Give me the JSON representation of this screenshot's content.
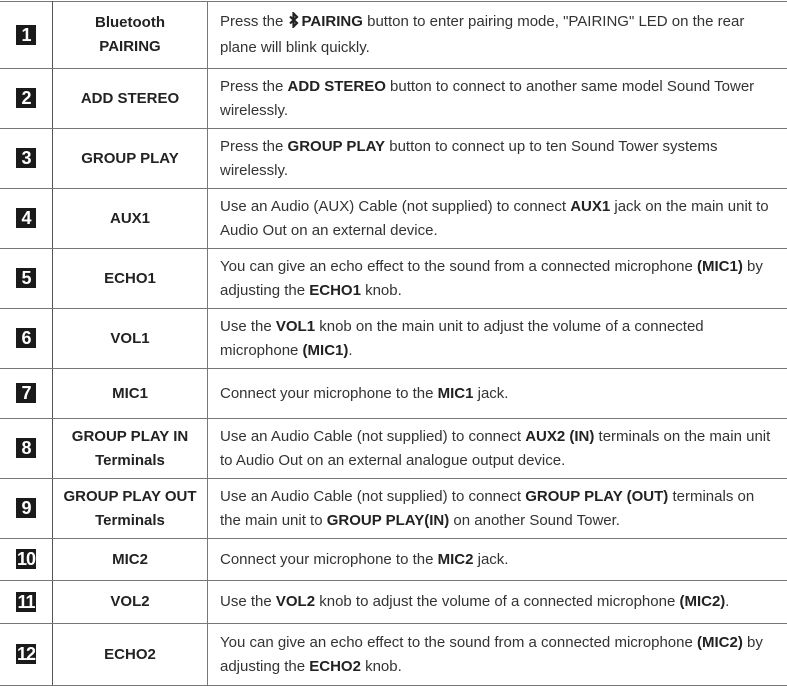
{
  "rows": [
    {
      "num": "1",
      "name": [
        "Bluetooth",
        "PAIRING"
      ],
      "desc": [
        {
          "t": "Press the "
        },
        {
          "icon": "bluetooth-icon",
          "g": "ᛒ"
        },
        {
          "t": "PAIRING",
          "b": true
        },
        {
          "t": " button to enter pairing mode, \"PAIRING\" LED on the rear plane will blink quickly."
        }
      ]
    },
    {
      "num": "2",
      "name": [
        "ADD STEREO"
      ],
      "desc": [
        {
          "t": "Press the "
        },
        {
          "t": "ADD STEREO",
          "b": true
        },
        {
          "t": " button to connect to another same model Sound Tower wirelessly."
        }
      ]
    },
    {
      "num": "3",
      "name": [
        "GROUP PLAY"
      ],
      "desc": [
        {
          "t": "Press the "
        },
        {
          "t": "GROUP PLAY",
          "b": true
        },
        {
          "t": " button to connect up to ten Sound Tower systems wirelessly."
        }
      ]
    },
    {
      "num": "4",
      "name": [
        "AUX1"
      ],
      "desc": [
        {
          "t": "Use an Audio (AUX) Cable (not supplied) to connect "
        },
        {
          "t": "AUX1",
          "b": true
        },
        {
          "t": " jack on the main unit to Audio Out on an external device."
        }
      ]
    },
    {
      "num": "5",
      "name": [
        "ECHO1"
      ],
      "desc": [
        {
          "t": "You can give an echo effect to the sound from a connected microphone "
        },
        {
          "t": "(MIC1)",
          "b": true
        },
        {
          "t": " by adjusting the "
        },
        {
          "t": "ECHO1",
          "b": true
        },
        {
          "t": " knob."
        }
      ]
    },
    {
      "num": "6",
      "name": [
        "VOL1"
      ],
      "desc": [
        {
          "t": "Use the "
        },
        {
          "t": "VOL1",
          "b": true
        },
        {
          "t": " knob on the main unit to adjust the volume of a connected microphone "
        },
        {
          "t": "(MIC1)",
          "b": true
        },
        {
          "t": "."
        }
      ]
    },
    {
      "num": "7",
      "name": [
        "MIC1"
      ],
      "desc": [
        {
          "t": "Connect your microphone to the "
        },
        {
          "t": "MIC1",
          "b": true
        },
        {
          "t": " jack."
        }
      ]
    },
    {
      "num": "8",
      "name": [
        "GROUP PLAY IN",
        "Terminals"
      ],
      "desc": [
        {
          "t": "Use an Audio Cable (not supplied) to connect "
        },
        {
          "t": "AUX2 (IN)",
          "b": true
        },
        {
          "t": " terminals on the main unit to Audio Out on an external analogue output device."
        }
      ]
    },
    {
      "num": "9",
      "name": [
        "GROUP PLAY OUT",
        "Terminals"
      ],
      "desc": [
        {
          "t": "Use an Audio Cable (not supplied) to connect "
        },
        {
          "t": "GROUP PLAY (OUT)",
          "b": true
        },
        {
          "t": " terminals on the main unit to "
        },
        {
          "t": "GROUP PLAY(IN)",
          "b": true
        },
        {
          "t": " on another Sound Tower."
        }
      ]
    },
    {
      "num": "10",
      "name": [
        "MIC2"
      ],
      "desc": [
        {
          "t": "Connect your microphone to the "
        },
        {
          "t": "MIC2",
          "b": true
        },
        {
          "t": " jack."
        }
      ]
    },
    {
      "num": "11",
      "name": [
        "VOL2"
      ],
      "desc": [
        {
          "t": "Use the "
        },
        {
          "t": "VOL2",
          "b": true
        },
        {
          "t": " knob to adjust the volume of a connected microphone "
        },
        {
          "t": "(MIC2)",
          "b": true
        },
        {
          "t": "."
        }
      ]
    },
    {
      "num": "12",
      "name": [
        "ECHO2"
      ],
      "desc": [
        {
          "t": "You can give an echo effect to the sound from a connected microphone "
        },
        {
          "t": "(MIC2)",
          "b": true
        },
        {
          "t": " by adjusting the "
        },
        {
          "t": "ECHO2",
          "b": true
        },
        {
          "t": " knob."
        }
      ]
    }
  ]
}
